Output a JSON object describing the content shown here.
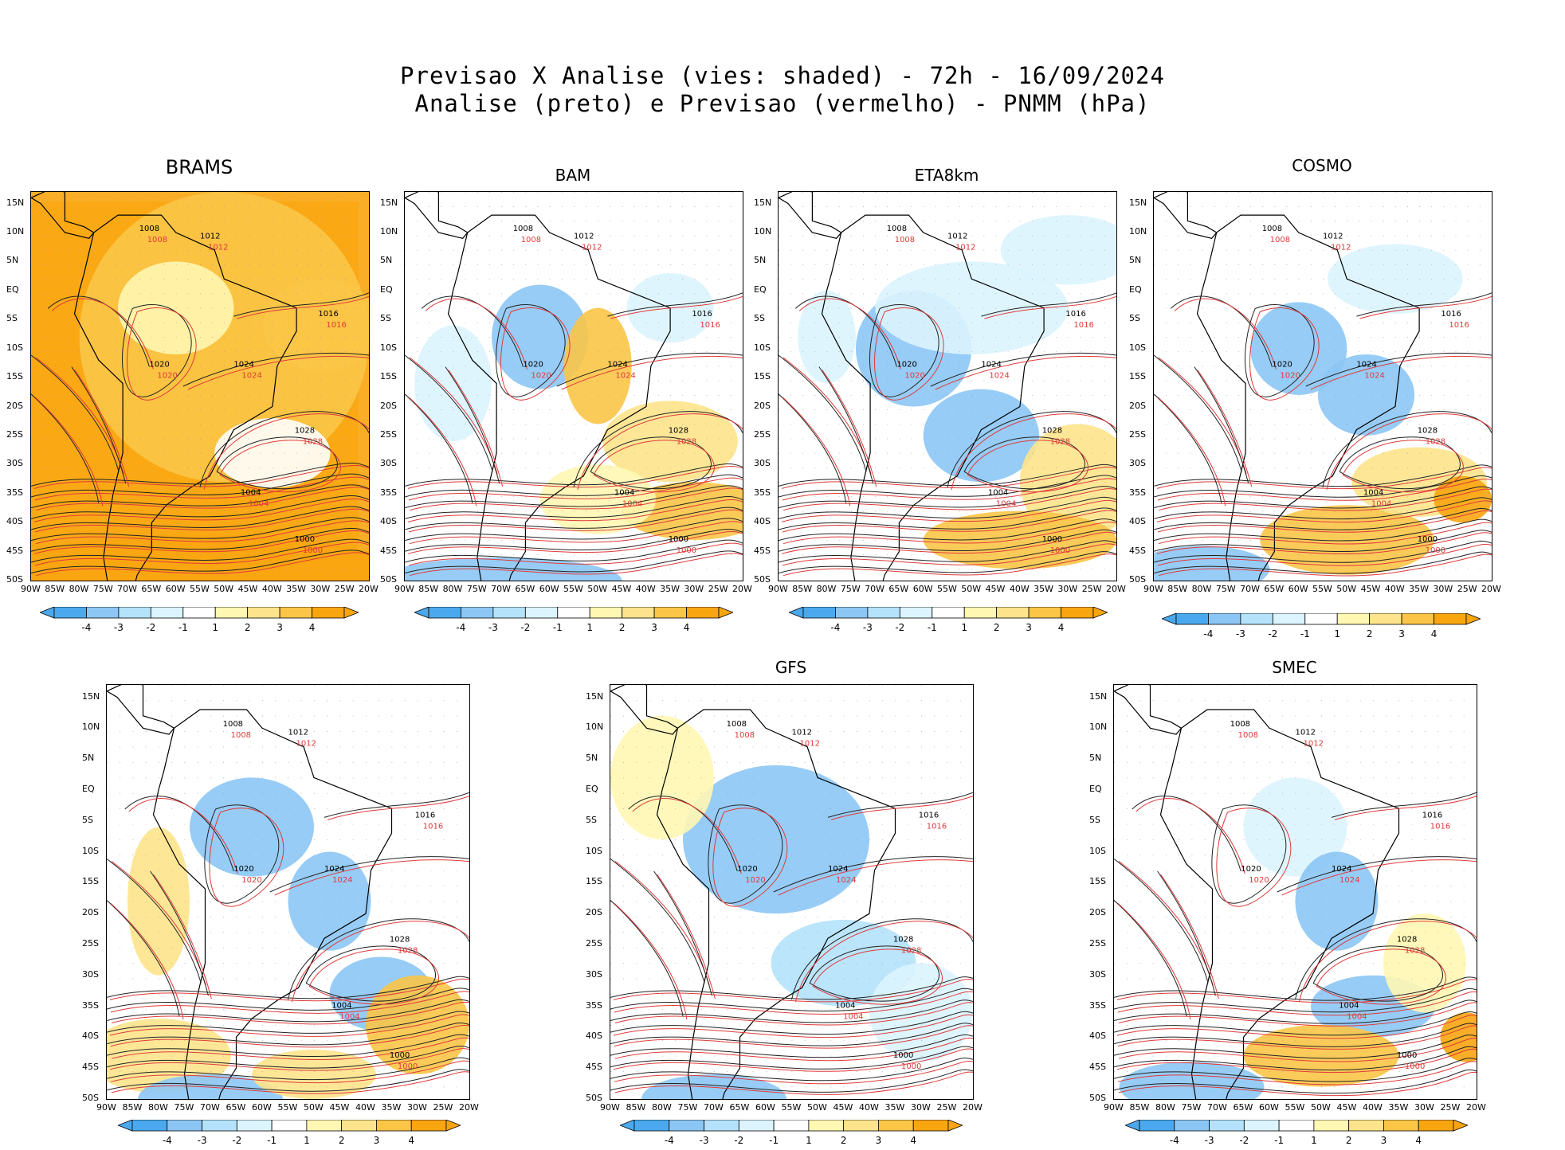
{
  "header": {
    "title_line1": "Previsao X Analise (vies: shaded) - 72h - 16/09/2024",
    "title_line2": "Analise (preto) e Previsao (vermelho) - PNMM (hPa)"
  },
  "axes": {
    "lat_labels": [
      "15N",
      "10N",
      "5N",
      "EQ",
      "5S",
      "10S",
      "15S",
      "20S",
      "25S",
      "30S",
      "35S",
      "40S",
      "45S",
      "50S"
    ],
    "lon_labels": [
      "90W",
      "85W",
      "80W",
      "75W",
      "70W",
      "65W",
      "60W",
      "55W",
      "50W",
      "45W",
      "40W",
      "35W",
      "30W",
      "25W",
      "20W"
    ]
  },
  "colorbar": {
    "labels": [
      "-4",
      "-3",
      "-2",
      "-1",
      "1",
      "2",
      "3",
      "4"
    ],
    "colors": [
      "#4aa9ee",
      "#8cc6f5",
      "#b4e2fb",
      "#dcf4fd",
      "#ffffff",
      "#fff7b2",
      "#fde48c",
      "#fbc547",
      "#f9a510"
    ]
  },
  "panels": [
    {
      "id": "brams",
      "title": "BRAMS",
      "isobars": [
        "1008",
        "1012",
        "1016",
        "1020",
        "1024",
        "1028",
        "1004",
        "1000"
      ]
    },
    {
      "id": "bam",
      "title": "BAM",
      "isobars": [
        "1008",
        "1012",
        "1016",
        "1020",
        "1024",
        "1028",
        "1004",
        "1000"
      ]
    },
    {
      "id": "eta8km",
      "title": "ETA8km",
      "isobars": [
        "1008",
        "1012",
        "1016",
        "1020",
        "1024",
        "1028",
        "1004",
        "1000"
      ]
    },
    {
      "id": "cosmo",
      "title": "COSMO",
      "isobars": [
        "1008",
        "1012",
        "1016",
        "1020",
        "1024",
        "1028",
        "1004",
        "1000"
      ]
    },
    {
      "id": "unnamed",
      "title": "",
      "isobars": [
        "1008",
        "1012",
        "1016",
        "1020",
        "1024",
        "1028",
        "1004",
        "1000"
      ]
    },
    {
      "id": "gfs",
      "title": "GFS",
      "isobars": [
        "1008",
        "1012",
        "1016",
        "1020",
        "1024",
        "1028",
        "1004",
        "1000"
      ]
    },
    {
      "id": "smec",
      "title": "SMEC",
      "isobars": [
        "1008",
        "1012",
        "1016",
        "1020",
        "1024",
        "1028",
        "1004",
        "1000"
      ]
    }
  ]
}
